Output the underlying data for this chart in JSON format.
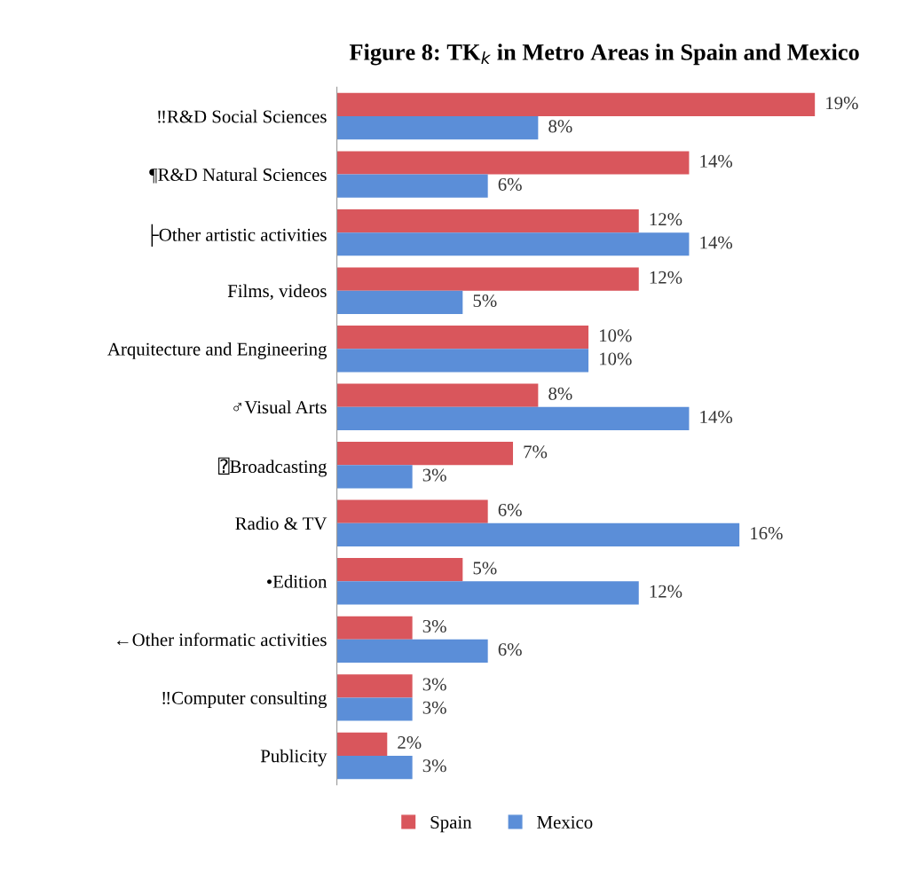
{
  "chart_data": {
    "type": "bar",
    "orientation": "horizontal",
    "title": "Figure 8: TK$_{k}$ in Metro Areas in Spain and Mexico",
    "categories": [
      "‼R&D Social Sciences",
      "¶R&D Natural Sciences",
      "├Other artistic activities",
      "Films, videos",
      "Arquitecture and Engineering",
      "♂Visual Arts",
      "⍰Broadcasting",
      "Radio & TV",
      "•Edition",
      "←Other informatic activities",
      "‼Computer consulting",
      "Publicity"
    ],
    "series": [
      {
        "name": "Spain",
        "color": "#d9565c",
        "values": [
          19,
          14,
          12,
          12,
          10,
          8,
          7,
          6,
          5,
          3,
          3,
          2
        ],
        "value_labels": [
          "19%",
          "14%",
          "12%",
          "12%",
          "10%",
          "8%",
          "7%",
          "6%",
          "5%",
          "3%",
          "3%",
          "2%"
        ]
      },
      {
        "name": "Mexico",
        "color": "#5b8ed8",
        "values": [
          8,
          6,
          14,
          5,
          10,
          14,
          3,
          16,
          12,
          6,
          3,
          3
        ],
        "value_labels": [
          "8%",
          "6%",
          "14%",
          "5%",
          "10%",
          "14%",
          "3%",
          "16%",
          "12%",
          "6%",
          "3%",
          "3%"
        ]
      }
    ],
    "legend": "bottom",
    "grid": false
  }
}
